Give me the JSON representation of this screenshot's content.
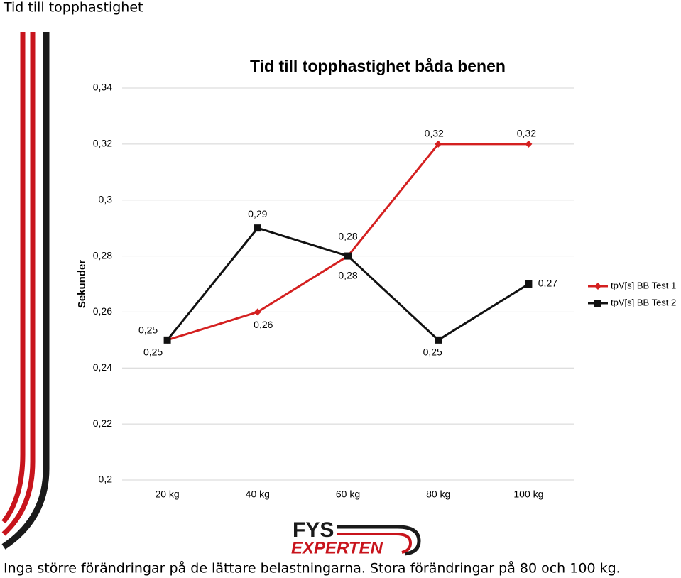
{
  "slide_title": "Tid till topphastighet",
  "chart_data": {
    "type": "line",
    "title": "Tid till topphastighet båda benen",
    "y_label": "Sekunder",
    "categories": [
      "20 kg",
      "40 kg",
      "60 kg",
      "80 kg",
      "100 kg"
    ],
    "series": [
      {
        "name": "tpV[s] BB Test 1",
        "color": "#d42020",
        "marker": "diamond",
        "values": [
          0.25,
          0.26,
          0.28,
          0.32,
          0.32
        ],
        "value_labels": [
          "0,25",
          "0,26",
          "0,28",
          "0,32",
          "0,32"
        ]
      },
      {
        "name": "tpV[s] BB Test 2",
        "color": "#111111",
        "marker": "square",
        "values": [
          0.25,
          0.29,
          0.28,
          0.25,
          0.27
        ],
        "value_labels": [
          "0,25",
          "0,29",
          "0,28",
          "0,25",
          "0,27"
        ]
      }
    ],
    "ylim": [
      0.2,
      0.34
    ],
    "yticks": [
      {
        "value": 0.2,
        "label": "0,2"
      },
      {
        "value": 0.22,
        "label": "0,22"
      },
      {
        "value": 0.24,
        "label": "0,24"
      },
      {
        "value": 0.26,
        "label": "0,26"
      },
      {
        "value": 0.28,
        "label": "0,28"
      },
      {
        "value": 0.3,
        "label": "0,3"
      },
      {
        "value": 0.32,
        "label": "0,32"
      },
      {
        "value": 0.34,
        "label": "0,34"
      }
    ],
    "grid": true,
    "legend": "right"
  },
  "logo": {
    "line1": "FYS",
    "line2": "EXPERTEN"
  },
  "caption": "Inga större förändringar på de lättare belastningarna. Stora förändringar på 80 och 100 kg."
}
